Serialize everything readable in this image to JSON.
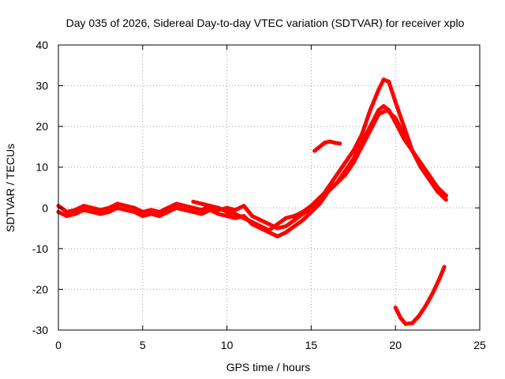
{
  "chart_data": {
    "type": "line",
    "title": "Day 035 of 2026, Sidereal Day-to-day VTEC variation (SDTVAR) for receiver xplo",
    "xlabel": "GPS time / hours",
    "ylabel": "SDTVAR / TECUs",
    "xlim": [
      0,
      25
    ],
    "ylim": [
      -30,
      40
    ],
    "xticks": [
      0,
      5,
      10,
      15,
      20,
      25
    ],
    "yticks": [
      -30,
      -20,
      -10,
      0,
      10,
      20,
      30,
      40
    ],
    "grid": true,
    "color": "#ff0000",
    "series": [
      {
        "name": "track-a",
        "x": [
          0,
          0.5,
          1,
          1.5,
          2,
          2.5,
          3,
          3.5,
          4,
          4.5,
          5,
          5.5,
          6,
          6.5,
          7,
          7.5,
          8,
          8.5,
          9,
          9.5,
          10,
          10.5,
          11,
          11.5,
          12,
          12.5,
          13,
          13.5,
          14,
          14.5,
          15,
          15.5,
          16,
          16.5,
          17,
          17.5,
          18,
          18.5,
          19,
          19.3,
          19.6,
          20,
          20.5,
          21,
          21.5,
          22,
          22.5,
          23
        ],
        "y": [
          0.5,
          -1,
          -0.5,
          0.5,
          0,
          -0.5,
          0,
          1,
          0.5,
          0,
          -1,
          -0.5,
          -1,
          0,
          1,
          0.5,
          0,
          -0.5,
          0.5,
          -0.5,
          0,
          -0.5,
          0.5,
          -2,
          -3,
          -4,
          -5,
          -4.5,
          -3,
          -1.5,
          0,
          2,
          5,
          8,
          11,
          14,
          18,
          24,
          29,
          31.5,
          31,
          26,
          20,
          14,
          10,
          7,
          4,
          2
        ]
      },
      {
        "name": "track-b",
        "x": [
          0,
          0.5,
          1,
          1.5,
          2,
          2.5,
          3,
          3.5,
          4,
          4.5,
          5,
          5.5,
          6,
          6.5,
          7,
          7.5,
          8,
          8.5,
          9,
          9.5,
          10,
          10.5,
          11,
          11.5,
          12,
          12.5,
          13,
          13.5,
          14,
          14.5,
          15,
          15.5,
          16,
          16.5,
          17,
          17.5,
          18,
          18.5,
          19,
          19.3,
          19.6,
          20,
          20.5,
          21,
          21.5,
          22,
          22.5,
          23
        ],
        "y": [
          -1,
          -2,
          -1.5,
          -0.5,
          -1,
          -1.5,
          -1,
          0,
          -0.5,
          -1,
          -2,
          -1.5,
          -2,
          -1,
          0,
          -0.5,
          -1,
          -1.5,
          -0.5,
          -1.5,
          -2,
          -2.5,
          -2,
          -4,
          -5,
          -6,
          -7,
          -6,
          -4.5,
          -3,
          -1,
          1,
          4,
          6,
          9,
          12,
          16,
          20,
          24,
          25,
          24,
          21,
          17,
          14,
          11,
          8,
          5,
          3
        ]
      },
      {
        "name": "track-c",
        "x": [
          8,
          8.5,
          9,
          9.5,
          10,
          10.5,
          11,
          11.5,
          12,
          12.5,
          13,
          13.5,
          14,
          14.5,
          15,
          15.5,
          16,
          16.5,
          17,
          17.5,
          18,
          18.5,
          19,
          19.5,
          20,
          20.5,
          21,
          21.5,
          22,
          22.5,
          23
        ],
        "y": [
          1.5,
          1,
          0.5,
          0,
          -1,
          -1.5,
          -2.5,
          -3.5,
          -4.5,
          -5.5,
          -4,
          -2.5,
          -2,
          -1,
          0.5,
          2.5,
          4.5,
          6,
          8,
          11,
          15,
          19,
          23,
          24,
          22,
          18,
          14,
          11,
          8,
          5,
          3
        ]
      },
      {
        "name": "segment-d",
        "x": [
          15.2,
          15.5,
          15.8,
          16.1,
          16.4,
          16.7
        ],
        "y": [
          14,
          15,
          16,
          16.3,
          16,
          15.8
        ]
      },
      {
        "name": "segment-e",
        "x": [
          20,
          20.3,
          20.6,
          21,
          21.4,
          21.8,
          22.2,
          22.6,
          22.9
        ],
        "y": [
          -24.5,
          -27,
          -28.5,
          -28.3,
          -26.5,
          -24,
          -21,
          -17.5,
          -14.5
        ]
      }
    ]
  }
}
